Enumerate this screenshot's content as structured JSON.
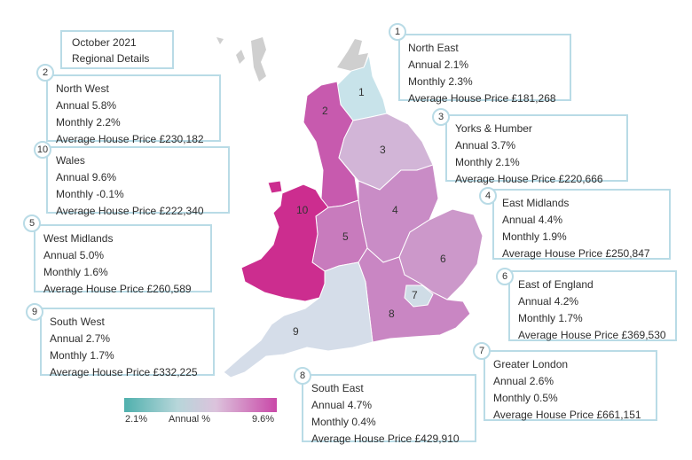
{
  "header": {
    "line1": "October 2021",
    "line2": "Regional Details"
  },
  "regions": [
    {
      "num": "1",
      "name": "North East",
      "annual": "Annual 2.1%",
      "monthly": "Monthly 2.3%",
      "price": "Average House Price £181,268",
      "color": "#c8e3ea"
    },
    {
      "num": "2",
      "name": "North West",
      "annual": "Annual 5.8%",
      "monthly": "Monthly 2.2%",
      "price": "Average House Price £230,182",
      "color": "#c75aae"
    },
    {
      "num": "3",
      "name": "Yorks & Humber",
      "annual": "Annual 3.7%",
      "monthly": "Monthly 2.1%",
      "price": "Average House Price £220,666",
      "color": "#d2b5d7"
    },
    {
      "num": "4",
      "name": "East Midlands",
      "annual": "Annual 4.4%",
      "monthly": "Monthly 1.9%",
      "price": "Average House Price £250,847",
      "color": "#c98cc6"
    },
    {
      "num": "5",
      "name": "West Midlands",
      "annual": "Annual 5.0%",
      "monthly": "Monthly 1.6%",
      "price": "Average House Price £260,589",
      "color": "#c87bbd"
    },
    {
      "num": "6",
      "name": "East of England",
      "annual": "Annual 4.2%",
      "monthly": "Monthly 1.7%",
      "price": "Average House Price £369,530",
      "color": "#cc98ca"
    },
    {
      "num": "7",
      "name": "Greater London",
      "annual": "Annual 2.6%",
      "monthly": "Monthly 0.5%",
      "price": "Average House Price £661,151",
      "color": "#cfdce6"
    },
    {
      "num": "8",
      "name": "South East",
      "annual": "Annual 4.7%",
      "monthly": "Monthly 0.4%",
      "price": "Average House Price £429,910",
      "color": "#c986c3"
    },
    {
      "num": "9",
      "name": "South West",
      "annual": "Annual 2.7%",
      "monthly": "Monthly 1.7%",
      "price": "Average House Price £332,225",
      "color": "#d5dde9"
    },
    {
      "num": "10",
      "name": "Wales",
      "annual": "Annual 9.6%",
      "monthly": "Monthly -0.1%",
      "price": "Average House Price £222,340",
      "color": "#cc2d8f"
    }
  ],
  "legend": {
    "min": "2.1%",
    "label": "Annual %",
    "max": "9.6%"
  },
  "colors": {
    "border": "#b9dbe6",
    "scotland": "#c9c9c9",
    "low": "#4fb0ad",
    "high": "#c948a8"
  }
}
